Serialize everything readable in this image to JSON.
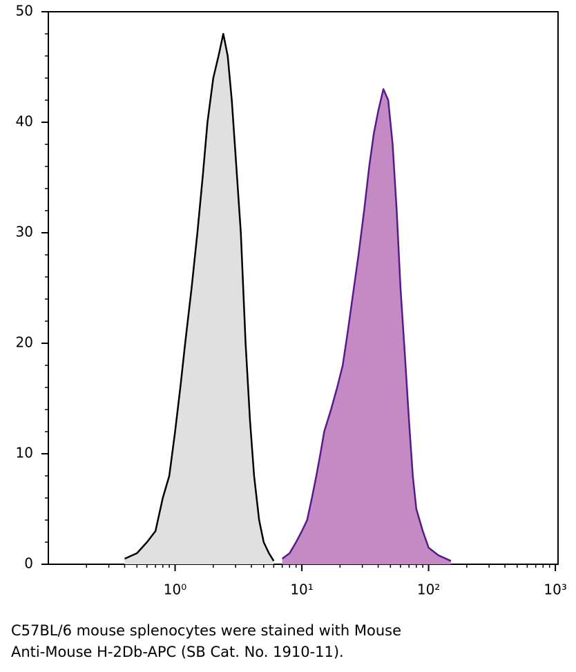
{
  "chart_data": {
    "type": "area",
    "caption": [
      "C57BL/6 mouse splenocytes were stained with Mouse",
      "Anti-Mouse H-2Db-APC (SB Cat. No. 1910-11)."
    ],
    "xscale": "log",
    "xlim": [
      0.1,
      1050
    ],
    "ylim": [
      0,
      50
    ],
    "xticks": [
      {
        "value": 1,
        "label": "10⁰"
      },
      {
        "value": 10,
        "label": "10¹"
      },
      {
        "value": 100,
        "label": "10²"
      },
      {
        "value": 1000,
        "label": "10³"
      }
    ],
    "yticks": [
      0,
      10,
      20,
      30,
      40,
      50
    ],
    "series": [
      {
        "color": "#000000",
        "fill": "#e0e0e0",
        "x": [
          0.4,
          0.5,
          0.6,
          0.7,
          0.8,
          0.9,
          1.0,
          1.1,
          1.2,
          1.35,
          1.5,
          1.65,
          1.8,
          2.0,
          2.2,
          2.4,
          2.6,
          2.8,
          3.0,
          3.3,
          3.6,
          3.9,
          4.2,
          4.6,
          5.0,
          5.5,
          6.0
        ],
        "values": [
          0.5,
          1,
          2,
          3,
          6,
          8,
          12,
          16,
          20,
          25,
          30,
          35,
          40,
          44,
          46,
          48,
          46,
          42,
          37,
          30,
          20,
          13,
          8,
          4,
          2,
          1,
          0.3
        ]
      },
      {
        "color": "#551a8b",
        "fill": "#c38ac3",
        "x": [
          7,
          8,
          9,
          10,
          11,
          12,
          13,
          14,
          15,
          17,
          19,
          21,
          23,
          25,
          28,
          31,
          34,
          37,
          40,
          44,
          48,
          52,
          56,
          60,
          65,
          70,
          75,
          80,
          90,
          100,
          120,
          150
        ],
        "values": [
          0.5,
          1,
          2,
          3,
          4,
          6,
          8,
          10,
          12,
          14,
          16,
          18,
          21,
          24,
          28,
          32,
          36,
          39,
          41,
          43,
          42,
          38,
          32,
          25,
          19,
          13,
          8,
          5,
          3,
          1.5,
          0.8,
          0.3
        ]
      }
    ]
  }
}
